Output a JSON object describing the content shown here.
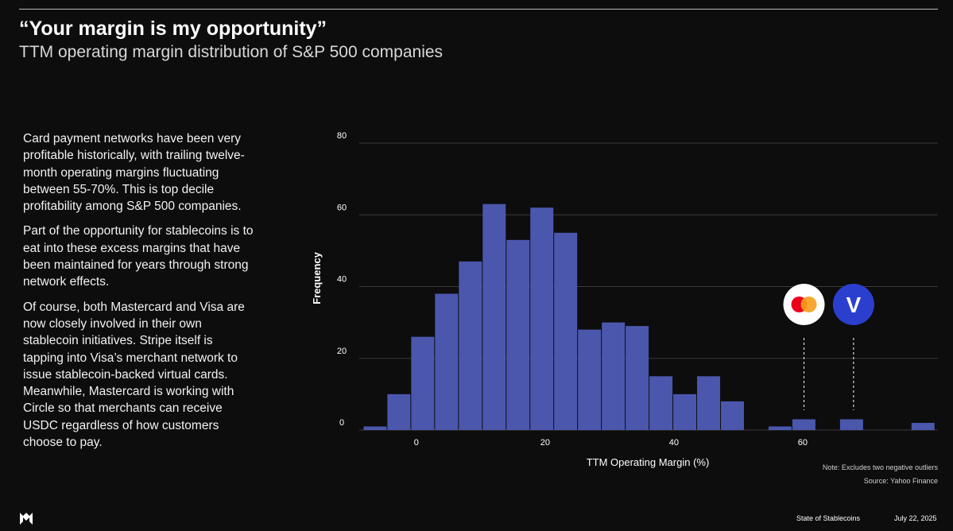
{
  "header": {
    "title": "“Your margin is my opportunity”",
    "subtitle": "TTM operating margin distribution of S&P 500 companies"
  },
  "body": {
    "paragraphs": [
      "Card payment networks have been very profitable historically, with trailing twelve-month operating margins fluctuating between 55-70%. This is top decile profitability among S&P 500 companies.",
      "Part of the opportunity for stablecoins is to eat into these excess margins that have been maintained for years through strong network effects.",
      "Of course, both Mastercard and Visa are now closely involved in their own stablecoin initiatives. Stripe itself is tapping into Visa’s merchant network to issue stablecoin-backed virtual cards. Meanwhile, Mastercard is working with Circle so that merchants can receive USDC regardless of how customers choose to pay."
    ]
  },
  "chart_data": {
    "type": "bar",
    "subtype": "histogram",
    "xlabel": "TTM Operating Margin (%)",
    "ylabel": "Frequency",
    "xlim": [
      -8.5,
      81
    ],
    "ylim": [
      0,
      80
    ],
    "xticks": [
      0,
      20,
      40,
      60
    ],
    "yticks": [
      0,
      20,
      40,
      60,
      80
    ],
    "grid": "horizontal",
    "bar_color": "#4b57ad",
    "bins": [
      {
        "x0": -8.2,
        "x1": -4.5,
        "value": 1
      },
      {
        "x0": -4.5,
        "x1": -0.8,
        "value": 10
      },
      {
        "x0": -0.8,
        "x1": 2.9,
        "value": 26
      },
      {
        "x0": 2.9,
        "x1": 6.6,
        "value": 38
      },
      {
        "x0": 6.6,
        "x1": 10.3,
        "value": 47
      },
      {
        "x0": 10.3,
        "x1": 14.0,
        "value": 63
      },
      {
        "x0": 14.0,
        "x1": 17.7,
        "value": 53
      },
      {
        "x0": 17.7,
        "x1": 21.4,
        "value": 62
      },
      {
        "x0": 21.4,
        "x1": 25.1,
        "value": 55
      },
      {
        "x0": 25.1,
        "x1": 28.8,
        "value": 28
      },
      {
        "x0": 28.8,
        "x1": 32.5,
        "value": 30
      },
      {
        "x0": 32.5,
        "x1": 36.2,
        "value": 29
      },
      {
        "x0": 36.2,
        "x1": 39.9,
        "value": 15
      },
      {
        "x0": 39.9,
        "x1": 43.6,
        "value": 10
      },
      {
        "x0": 43.6,
        "x1": 47.3,
        "value": 15
      },
      {
        "x0": 47.3,
        "x1": 51.0,
        "value": 8
      },
      {
        "x0": 54.7,
        "x1": 58.4,
        "value": 1
      },
      {
        "x0": 58.4,
        "x1": 62.1,
        "value": 3
      },
      {
        "x0": 65.8,
        "x1": 69.5,
        "value": 3
      },
      {
        "x0": 76.9,
        "x1": 80.6,
        "value": 2
      }
    ],
    "markers": [
      {
        "name": "mastercard",
        "x": 60.2,
        "icon": "mastercard-logo-icon"
      },
      {
        "name": "visa",
        "x": 67.9,
        "icon": "visa-logo-icon",
        "glyph": "V"
      }
    ],
    "note": "Note: Excludes two negative outliers",
    "source": "Source: Yahoo Finance"
  },
  "footer": {
    "report": "State of Stablecoins",
    "date": "July 22, 2025",
    "logo_icon": "brand-logo-icon"
  },
  "colors": {
    "background": "#0d0d0d",
    "bar": "#4b57ad",
    "visa_blue": "#2b3fcf",
    "mastercard_red": "#eb001b",
    "mastercard_orange": "#f79e1b"
  }
}
